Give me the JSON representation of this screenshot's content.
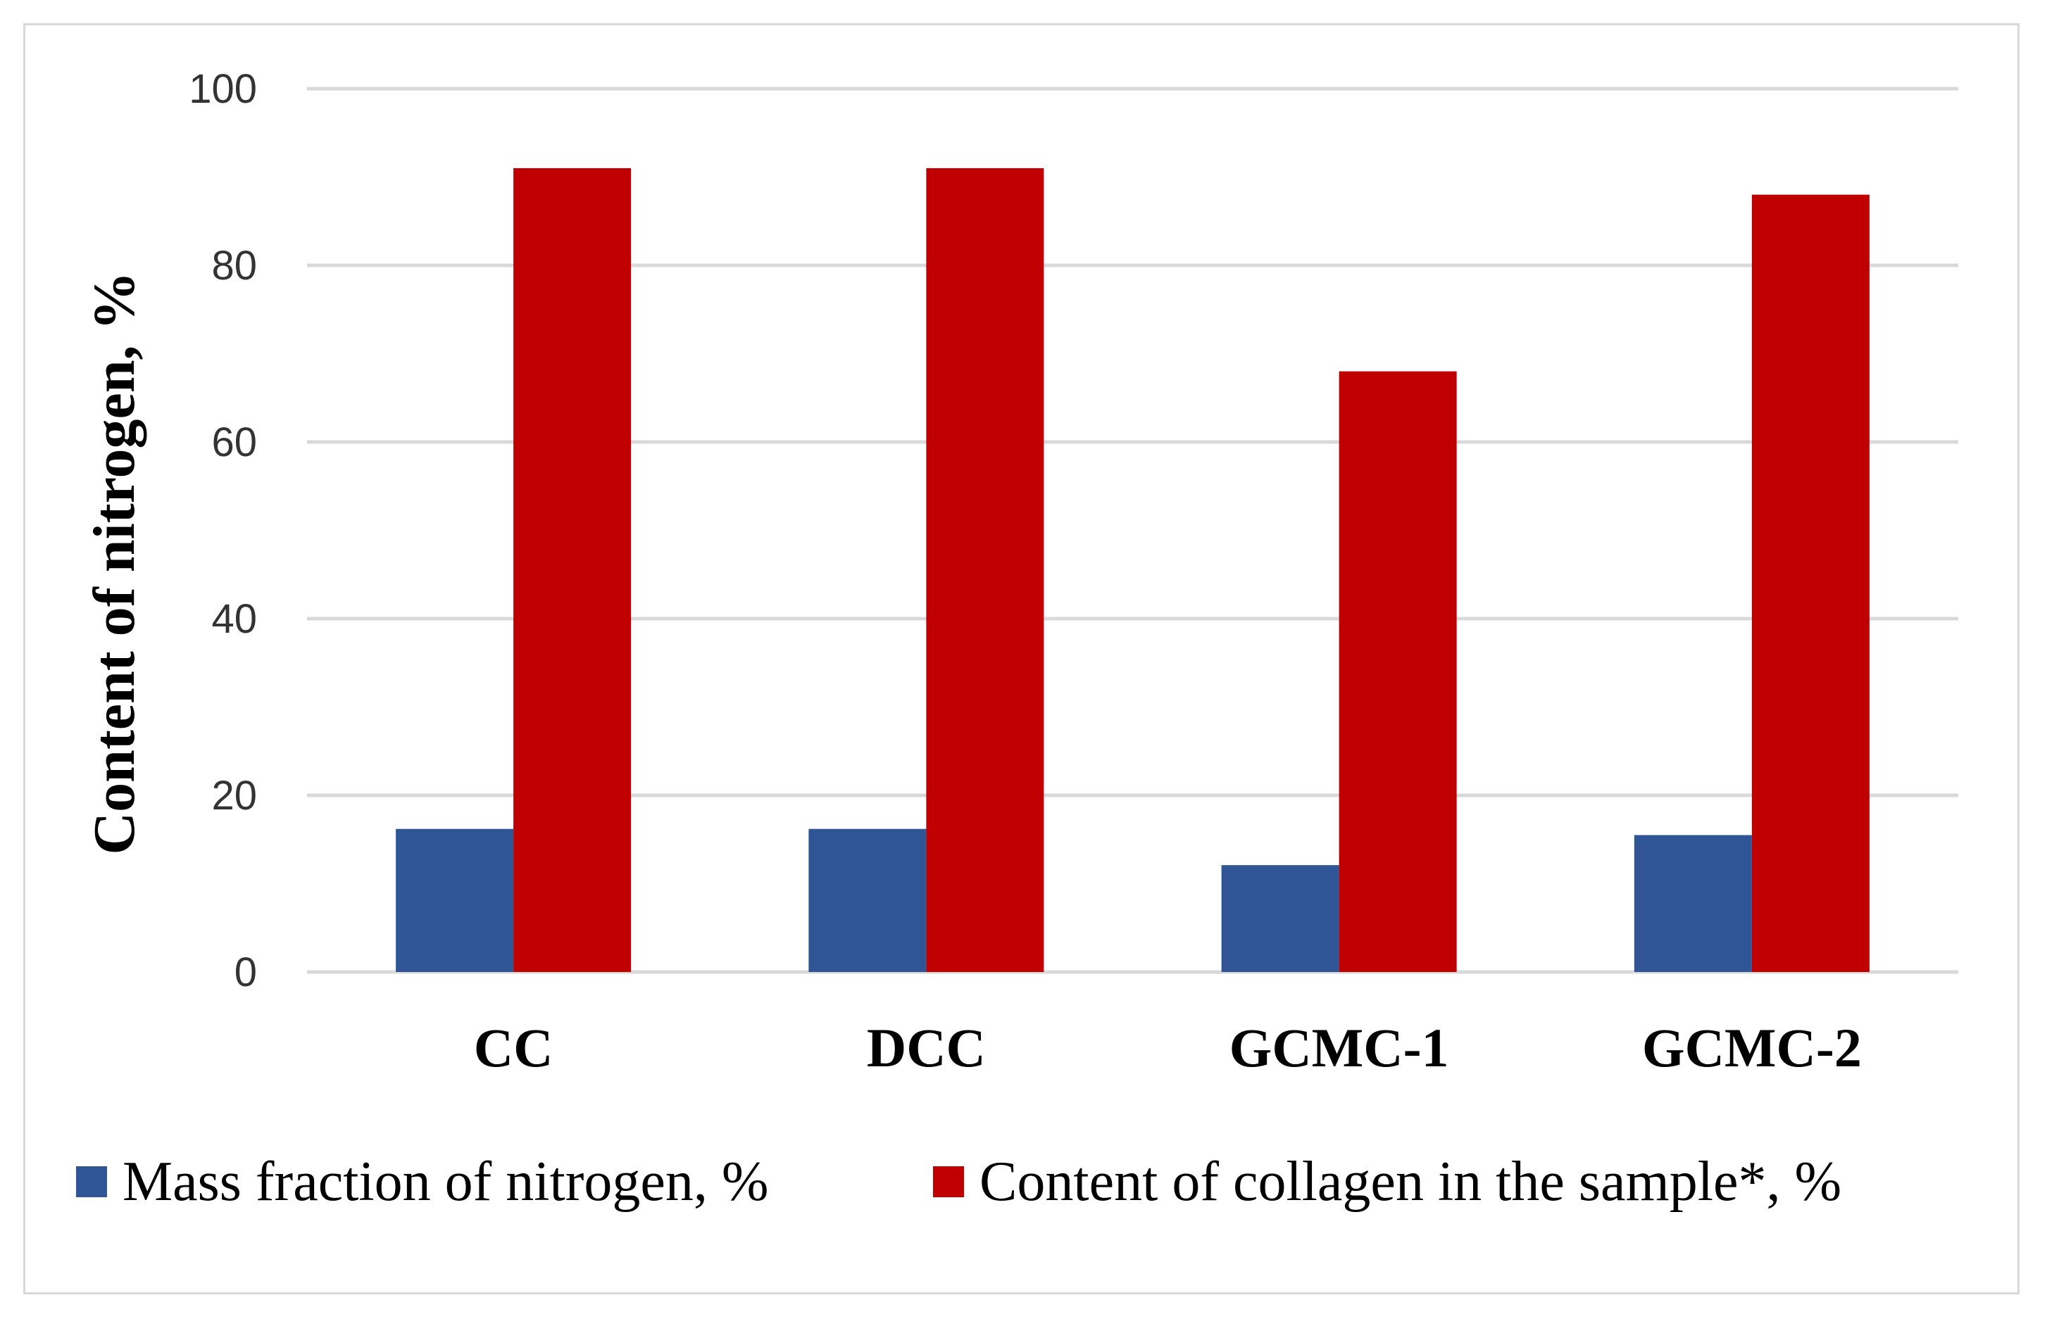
{
  "chart_data": {
    "type": "bar",
    "title": "",
    "xlabel": "",
    "ylabel": "Content of nitrogen, %",
    "ylim": [
      0,
      100
    ],
    "yticks": [
      0,
      20,
      40,
      60,
      80,
      100
    ],
    "grid": true,
    "legend_position": "bottom",
    "categories": [
      "CC",
      "DCC",
      "GCMC-1",
      "GCMC-2"
    ],
    "series": [
      {
        "name": "Mass fraction of nitrogen, %",
        "color": "#2F5597",
        "values": [
          16.2,
          16.2,
          12.1,
          15.5
        ]
      },
      {
        "name": "Content of collagen in the sample*, %",
        "color": "#C00000",
        "values": [
          91,
          91,
          68,
          88
        ]
      }
    ]
  }
}
